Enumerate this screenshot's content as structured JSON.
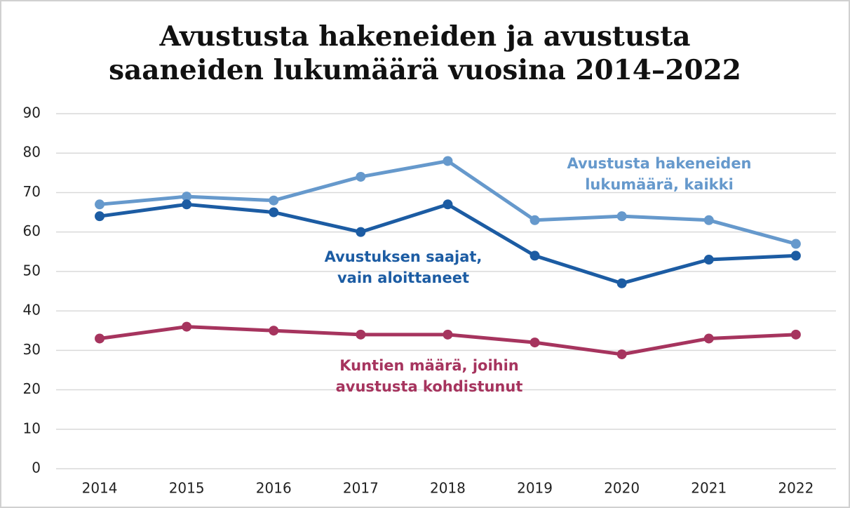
{
  "chart_data": {
    "type": "line",
    "title": "Avustusta hakeneiden ja avustusta\nsaaneiden lukumäärä vuosina 2014–2022",
    "categories": [
      "2014",
      "2015",
      "2016",
      "2017",
      "2018",
      "2019",
      "2020",
      "2021",
      "2022"
    ],
    "series": [
      {
        "name": "Avustusta hakeneiden\nlukumäärä, kaikki",
        "color": "#6699cc",
        "values": [
          67,
          69,
          68,
          74,
          78,
          63,
          64,
          63,
          57
        ]
      },
      {
        "name": "Avustuksen saajat,\nvain aloittaneet",
        "color": "#1c5ca3",
        "values": [
          64,
          67,
          65,
          60,
          67,
          54,
          47,
          53,
          54
        ]
      },
      {
        "name": "Kuntien määrä, joihin\navustusta kohdistunut",
        "color": "#a6345e",
        "values": [
          33,
          36,
          35,
          34,
          34,
          32,
          29,
          33,
          34
        ]
      }
    ],
    "ylim": [
      0,
      90
    ],
    "yticks": [
      0,
      10,
      20,
      30,
      40,
      50,
      60,
      70,
      80,
      90
    ],
    "grid": true
  }
}
